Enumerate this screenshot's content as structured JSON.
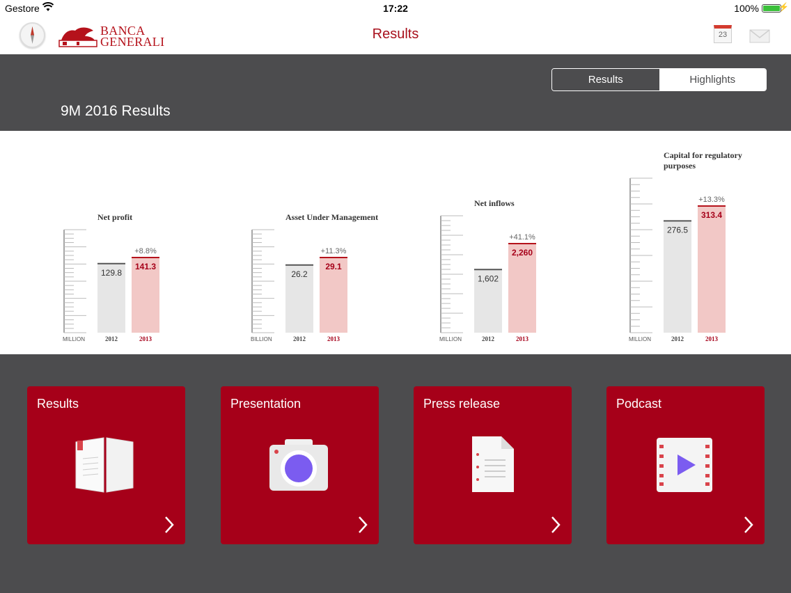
{
  "status_bar": {
    "carrier": "Gestore",
    "time": "17:22",
    "battery": "100%"
  },
  "nav": {
    "logo_line1": "BANCA",
    "logo_line2": "GENERALI",
    "title": "Results",
    "calendar_day": "23"
  },
  "segments": [
    {
      "label": "Results",
      "active": true
    },
    {
      "label": "Highlights",
      "active": false
    }
  ],
  "period_title": "9M 2016 Results",
  "chart_data": [
    {
      "type": "bar",
      "title": "Net profit",
      "unit": "MILLION",
      "categories": [
        "2012",
        "2013"
      ],
      "values": [
        129.8,
        141.3
      ],
      "value_labels": [
        "129.8",
        "141.3"
      ],
      "change": "+8.8%"
    },
    {
      "type": "bar",
      "title": "Asset Under Management",
      "unit": "BILLION",
      "categories": [
        "2012",
        "2013"
      ],
      "values": [
        26.2,
        29.1
      ],
      "value_labels": [
        "26.2",
        "29.1"
      ],
      "change": "+11.3%"
    },
    {
      "type": "bar",
      "title": "Net inflows",
      "unit": "MILLION",
      "categories": [
        "2012",
        "2013"
      ],
      "values": [
        1602,
        2260
      ],
      "value_labels": [
        "1,602",
        "2,260"
      ],
      "change": "+41.1%"
    },
    {
      "type": "bar",
      "title": "Capital for regulatory purposes",
      "unit": "MILLION",
      "categories": [
        "2012",
        "2013"
      ],
      "values": [
        276.5,
        313.4
      ],
      "value_labels": [
        "276.5",
        "313.4"
      ],
      "change": "+13.3%"
    }
  ],
  "tiles": [
    {
      "label": "Results",
      "icon": "book-icon"
    },
    {
      "label": "Presentation",
      "icon": "camera-icon"
    },
    {
      "label": "Press release",
      "icon": "document-icon"
    },
    {
      "label": "Podcast",
      "icon": "video-icon"
    }
  ],
  "colors": {
    "brand_red": "#a60019",
    "bar_2012": "#e6e6e6",
    "bar_2013": "#f2c8c6",
    "background": "#4c4c4e"
  }
}
